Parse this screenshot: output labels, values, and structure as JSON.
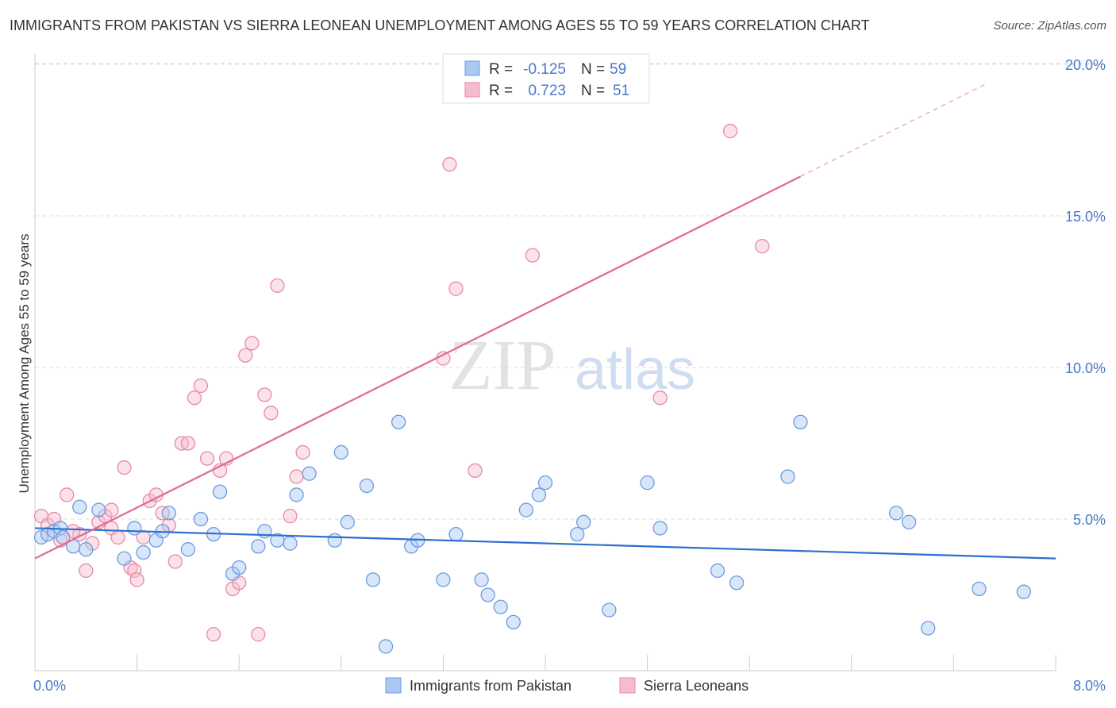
{
  "title": "IMMIGRANTS FROM PAKISTAN VS SIERRA LEONEAN UNEMPLOYMENT AMONG AGES 55 TO 59 YEARS CORRELATION CHART",
  "source": "Source: ZipAtlas.com",
  "watermark": {
    "zip": "ZIP",
    "atlas": "atlas"
  },
  "colors": {
    "pakistan_fill": "#a9c8f2",
    "pakistan_stroke": "#6d9be0",
    "pakistan_line": "#2c6fd1",
    "sierra_fill": "#f6bccd",
    "sierra_stroke": "#e88aa7",
    "sierra_line": "#e06a94",
    "axis_text": "#4a78c8",
    "grid": "#dddddd"
  },
  "legend": {
    "items": [
      {
        "r_label": "R =",
        "r_value": "-0.125",
        "n_label": "N =",
        "n_value": "59"
      },
      {
        "r_label": "R =",
        "r_value": "0.723",
        "n_label": "N =",
        "n_value": "51"
      }
    ]
  },
  "bottom_legend": [
    "Immigrants from Pakistan",
    "Sierra Leoneans"
  ],
  "chart_data": {
    "type": "scatter",
    "title": "IMMIGRANTS FROM PAKISTAN VS SIERRA LEONEAN UNEMPLOYMENT AMONG AGES 55 TO 59 YEARS CORRELATION CHART",
    "xlabel": "",
    "ylabel": "Unemployment Among Ages 55 to 59 years",
    "xlim": [
      0,
      8
    ],
    "ylim": [
      0,
      20
    ],
    "x_tick_labels": [
      "0.0%",
      "8.0%"
    ],
    "y_tick_labels": [
      "5.0%",
      "10.0%",
      "15.0%",
      "20.0%"
    ],
    "y_ticks": [
      5,
      10,
      15,
      20
    ],
    "grid": true,
    "legend_position": "top-center",
    "series": [
      {
        "name": "Immigrants from Pakistan",
        "R": -0.125,
        "N": 59,
        "trend": {
          "x0": 0.0,
          "y0": 4.7,
          "x1": 8.0,
          "y1": 3.7
        },
        "points": [
          [
            0.05,
            4.4
          ],
          [
            0.1,
            4.5
          ],
          [
            0.15,
            4.6
          ],
          [
            0.2,
            4.7
          ],
          [
            0.22,
            4.4
          ],
          [
            0.3,
            4.1
          ],
          [
            0.35,
            5.4
          ],
          [
            0.4,
            4.0
          ],
          [
            0.5,
            5.3
          ],
          [
            0.7,
            3.7
          ],
          [
            0.78,
            4.7
          ],
          [
            0.85,
            3.9
          ],
          [
            0.95,
            4.3
          ],
          [
            1.0,
            4.6
          ],
          [
            1.05,
            5.2
          ],
          [
            1.2,
            4.0
          ],
          [
            1.3,
            5.0
          ],
          [
            1.4,
            4.5
          ],
          [
            1.45,
            5.9
          ],
          [
            1.55,
            3.2
          ],
          [
            1.6,
            3.4
          ],
          [
            1.75,
            4.1
          ],
          [
            1.8,
            4.6
          ],
          [
            1.9,
            4.3
          ],
          [
            2.0,
            4.2
          ],
          [
            2.05,
            5.8
          ],
          [
            2.15,
            6.5
          ],
          [
            2.35,
            4.3
          ],
          [
            2.4,
            7.2
          ],
          [
            2.45,
            4.9
          ],
          [
            2.6,
            6.1
          ],
          [
            2.65,
            3.0
          ],
          [
            2.75,
            0.8
          ],
          [
            2.85,
            8.2
          ],
          [
            2.95,
            4.1
          ],
          [
            3.0,
            4.3
          ],
          [
            3.2,
            3.0
          ],
          [
            3.3,
            4.5
          ],
          [
            3.5,
            3.0
          ],
          [
            3.55,
            2.5
          ],
          [
            3.65,
            2.1
          ],
          [
            3.75,
            1.6
          ],
          [
            3.85,
            5.3
          ],
          [
            3.95,
            5.8
          ],
          [
            4.0,
            6.2
          ],
          [
            4.25,
            4.5
          ],
          [
            4.3,
            4.9
          ],
          [
            4.5,
            2.0
          ],
          [
            4.8,
            6.2
          ],
          [
            4.9,
            4.7
          ],
          [
            5.35,
            3.3
          ],
          [
            5.5,
            2.9
          ],
          [
            5.9,
            6.4
          ],
          [
            6.0,
            8.2
          ],
          [
            6.75,
            5.2
          ],
          [
            6.85,
            4.9
          ],
          [
            7.0,
            1.4
          ],
          [
            7.4,
            2.7
          ],
          [
            7.75,
            2.6
          ]
        ]
      },
      {
        "name": "Sierra Leoneans",
        "R": 0.723,
        "N": 51,
        "trend": {
          "x0": 0.0,
          "y0": 3.7,
          "x1": 8.0,
          "y1": 20.5,
          "solid_until_x": 6.0
        },
        "points": [
          [
            0.05,
            5.1
          ],
          [
            0.1,
            4.8
          ],
          [
            0.2,
            4.3
          ],
          [
            0.25,
            5.8
          ],
          [
            0.35,
            4.5
          ],
          [
            0.4,
            3.3
          ],
          [
            0.5,
            4.9
          ],
          [
            0.55,
            5.1
          ],
          [
            0.6,
            4.7
          ],
          [
            0.65,
            4.4
          ],
          [
            0.7,
            6.7
          ],
          [
            0.75,
            3.4
          ],
          [
            0.78,
            3.3
          ],
          [
            0.8,
            3.0
          ],
          [
            0.85,
            4.4
          ],
          [
            0.9,
            5.6
          ],
          [
            0.95,
            5.8
          ],
          [
            1.0,
            5.2
          ],
          [
            1.05,
            4.8
          ],
          [
            1.1,
            3.6
          ],
          [
            1.15,
            7.5
          ],
          [
            1.2,
            7.5
          ],
          [
            1.25,
            9.0
          ],
          [
            1.3,
            9.4
          ],
          [
            1.35,
            7.0
          ],
          [
            1.4,
            1.2
          ],
          [
            1.45,
            6.6
          ],
          [
            1.5,
            7.0
          ],
          [
            1.55,
            2.7
          ],
          [
            1.6,
            2.9
          ],
          [
            1.65,
            10.4
          ],
          [
            1.7,
            10.8
          ],
          [
            1.75,
            1.2
          ],
          [
            1.8,
            9.1
          ],
          [
            1.85,
            8.5
          ],
          [
            1.9,
            12.7
          ],
          [
            2.0,
            5.1
          ],
          [
            2.05,
            6.4
          ],
          [
            2.1,
            7.2
          ],
          [
            3.2,
            10.3
          ],
          [
            3.25,
            16.7
          ],
          [
            3.3,
            12.6
          ],
          [
            3.45,
            6.6
          ],
          [
            3.9,
            13.7
          ],
          [
            4.9,
            9.0
          ],
          [
            5.45,
            17.8
          ],
          [
            5.7,
            14.0
          ],
          [
            0.15,
            5.0
          ],
          [
            0.3,
            4.6
          ],
          [
            0.45,
            4.2
          ],
          [
            0.6,
            5.3
          ]
        ]
      }
    ]
  }
}
